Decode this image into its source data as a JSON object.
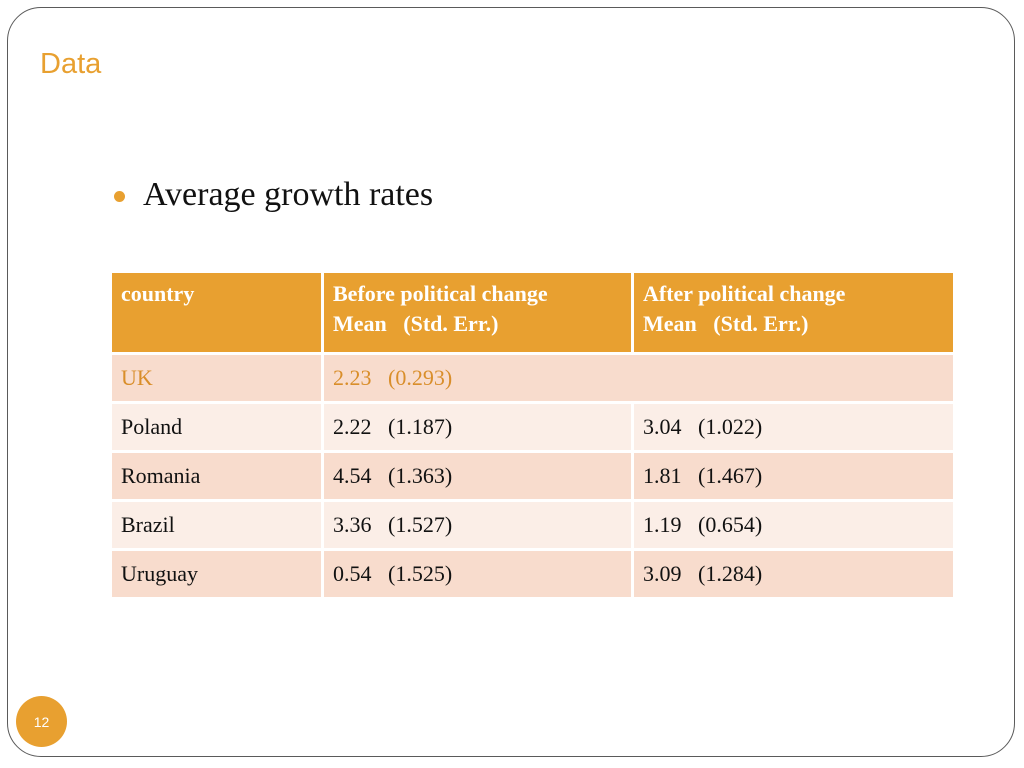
{
  "slide": {
    "title": "Data",
    "bullet": "Average growth rates",
    "page_number": "12"
  },
  "table": {
    "header": {
      "col1": "country",
      "col2_line1": "Before political change",
      "col2_line2": "Mean   (Std. Err.)",
      "col3_line1": "After political change",
      "col3_line2": "Mean   (Std. Err.)"
    },
    "uk": {
      "country": "UK",
      "value": "2.23   (0.293)"
    },
    "rows": [
      {
        "country": "Poland",
        "before": "2.22   (1.187)",
        "after": "3.04   (1.022)"
      },
      {
        "country": "Romania",
        "before": "4.54   (1.363)",
        "after": "1.81   (1.467)"
      },
      {
        "country": "Brazil",
        "before": "3.36   (1.527)",
        "after": "1.19   (0.654)"
      },
      {
        "country": "Uruguay",
        "before": "0.54   (1.525)",
        "after": "3.09   (1.284)"
      }
    ]
  },
  "colors": {
    "accent": "#e8a030",
    "row_dark": "#f8dccd",
    "row_light": "#fbeee7"
  }
}
